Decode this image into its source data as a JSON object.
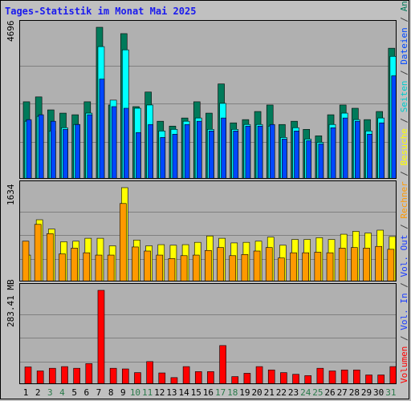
{
  "title": "Tages-Statistik im Monat Mai 2025",
  "chart_data": [
    {
      "type": "bar",
      "panel": "top",
      "ylabel": "4696",
      "ymax": 4696,
      "x": [
        "1",
        "2",
        "3",
        "4",
        "5",
        "6",
        "7",
        "8",
        "9",
        "10",
        "11",
        "12",
        "13",
        "14",
        "15",
        "16",
        "17",
        "18",
        "19",
        "20",
        "21",
        "22",
        "23",
        "24",
        "25",
        "26",
        "27",
        "28",
        "29",
        "30",
        "31"
      ],
      "weekend": [
        false,
        false,
        true,
        true,
        false,
        false,
        false,
        false,
        false,
        true,
        true,
        false,
        false,
        false,
        false,
        false,
        true,
        true,
        false,
        false,
        false,
        false,
        false,
        true,
        true,
        false,
        false,
        false,
        false,
        false,
        true
      ],
      "series": [
        {
          "name": "Anfragen",
          "color": "#007a5a",
          "values": [
            2400,
            2550,
            2150,
            2050,
            2000,
            2400,
            4696,
            2300,
            4500,
            2250,
            2700,
            1800,
            1650,
            1900,
            2400,
            2050,
            2950,
            1750,
            1850,
            2100,
            2300,
            1700,
            1800,
            1550,
            1350,
            2000,
            2300,
            2200,
            1850,
            2100,
            4050
          ]
        },
        {
          "name": "Dateien",
          "color": "#00ffff",
          "values": [
            1800,
            1950,
            1500,
            1600,
            1700,
            2050,
            4100,
            2450,
            4000,
            2200,
            2300,
            1500,
            1550,
            1800,
            1900,
            1550,
            2350,
            1550,
            1700,
            1700,
            1650,
            1300,
            1600,
            1250,
            1150,
            1700,
            2050,
            1850,
            1500,
            1900,
            3800
          ]
        },
        {
          "name": "Seiten",
          "color": "#0047ff",
          "values": [
            1850,
            2000,
            1800,
            1550,
            1700,
            2000,
            3100,
            2250,
            2200,
            1450,
            1700,
            1300,
            1400,
            1700,
            1800,
            1500,
            1900,
            1500,
            1650,
            1650,
            1700,
            1250,
            1500,
            1200,
            1100,
            1600,
            1900,
            1800,
            1400,
            1750,
            3200
          ]
        }
      ]
    },
    {
      "type": "bar",
      "panel": "middle",
      "ylabel": "1634",
      "ymax": 1634,
      "series": [
        {
          "name": "Besuche",
          "color": "#ffff00",
          "values": [
            470,
            1080,
            920,
            700,
            710,
            760,
            760,
            630,
            1634,
            730,
            630,
            650,
            640,
            650,
            690,
            800,
            760,
            680,
            690,
            710,
            780,
            640,
            740,
            740,
            770,
            740,
            830,
            880,
            850,
            900,
            790
          ]
        },
        {
          "name": "Rechner",
          "color": "#ff9900",
          "values": [
            710,
            1000,
            840,
            490,
            590,
            510,
            470,
            470,
            1360,
            610,
            540,
            470,
            410,
            460,
            470,
            550,
            600,
            460,
            480,
            540,
            600,
            420,
            510,
            510,
            520,
            510,
            590,
            600,
            590,
            620,
            570
          ]
        }
      ]
    },
    {
      "type": "bar",
      "panel": "bottom",
      "ylabel": "283.41 MB",
      "ymax": 283.41,
      "series": [
        {
          "name": "Volumen",
          "color": "#ff0000",
          "values": [
            54,
            42,
            50,
            55,
            50,
            64,
            283.41,
            50,
            48,
            37,
            70,
            36,
            22,
            55,
            40,
            40,
            118,
            25,
            35,
            55,
            45,
            37,
            32,
            28,
            50,
            42,
            45,
            45,
            30,
            30,
            55
          ]
        },
        {
          "name": "Vol. In",
          "color": "#1a3cff",
          "values": []
        },
        {
          "name": "Vol. Out",
          "color": "#1a3cff",
          "values": []
        }
      ]
    }
  ],
  "legend_right": [
    "Volumen",
    " / ",
    "Vol. In",
    " / ",
    "Vol. Out",
    " / ",
    "Rechner",
    " / ",
    "Besuche",
    " / ",
    "Seiten",
    " / ",
    "Dateien",
    " / ",
    "Anfragen"
  ],
  "legend_colors": [
    "#ff0000",
    "#404040",
    "#1a3cff",
    "#404040",
    "#1a3cff",
    "#404040",
    "#ff9900",
    "#404040",
    "#ffff00",
    "#404040",
    "#00cccc",
    "#404040",
    "#0047ff",
    "#404040",
    "#007a5a"
  ]
}
